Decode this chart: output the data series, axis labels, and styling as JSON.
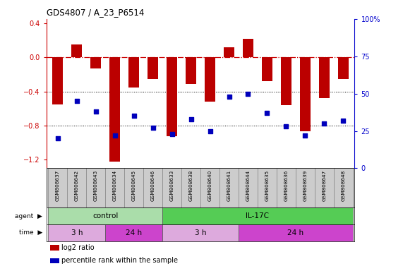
{
  "title": "GDS4807 / A_23_P6514",
  "samples": [
    "GSM808637",
    "GSM808642",
    "GSM808643",
    "GSM808634",
    "GSM808645",
    "GSM808646",
    "GSM808633",
    "GSM808638",
    "GSM808640",
    "GSM808641",
    "GSM808644",
    "GSM808635",
    "GSM808636",
    "GSM808639",
    "GSM808647",
    "GSM808648"
  ],
  "log2_ratio": [
    -0.55,
    0.15,
    -0.13,
    -1.22,
    -0.35,
    -0.25,
    -0.92,
    -0.31,
    -0.52,
    0.12,
    0.22,
    -0.28,
    -0.56,
    -0.87,
    -0.48,
    -0.25
  ],
  "percentile": [
    20,
    45,
    38,
    22,
    35,
    27,
    23,
    33,
    25,
    48,
    50,
    37,
    28,
    22,
    30,
    32
  ],
  "ylim_left": [
    -1.3,
    0.45
  ],
  "ylim_right": [
    0,
    100
  ],
  "yticks_left": [
    -1.2,
    -0.8,
    -0.4,
    0.0,
    0.4
  ],
  "yticks_right": [
    0,
    25,
    50,
    75,
    100
  ],
  "agent_groups": [
    {
      "label": "control",
      "start": 0,
      "end": 5,
      "color": "#aaddaa"
    },
    {
      "label": "IL-17C",
      "start": 6,
      "end": 15,
      "color": "#55cc55"
    }
  ],
  "time_groups": [
    {
      "label": "3 h",
      "start": 0,
      "end": 2,
      "color": "#ddaadd"
    },
    {
      "label": "24 h",
      "start": 3,
      "end": 5,
      "color": "#cc44cc"
    },
    {
      "label": "3 h",
      "start": 6,
      "end": 9,
      "color": "#ddaadd"
    },
    {
      "label": "24 h",
      "start": 10,
      "end": 15,
      "color": "#cc44cc"
    }
  ],
  "bar_color": "#bb0000",
  "dot_color": "#0000bb",
  "ref_line_color": "#cc0000",
  "dot_line_color": "#9999ff",
  "grid_color": "#000000",
  "bg_color": "#ffffff",
  "label_bg_color": "#cccccc",
  "ax_color_left": "#cc0000",
  "ax_color_right": "#0000cc",
  "legend_items": [
    {
      "color": "#bb0000",
      "label": "log2 ratio"
    },
    {
      "color": "#0000bb",
      "label": "percentile rank within the sample"
    }
  ]
}
